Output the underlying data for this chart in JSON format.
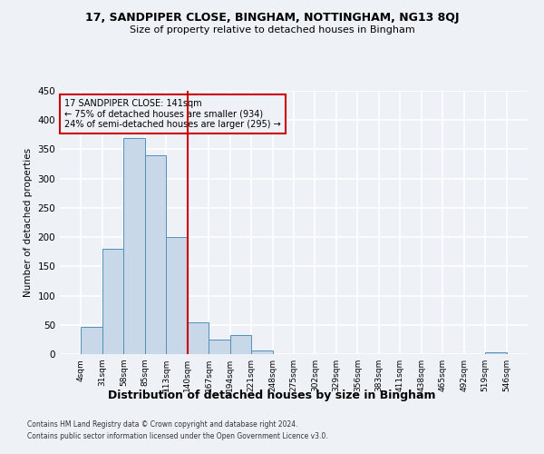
{
  "title": "17, SANDPIPER CLOSE, BINGHAM, NOTTINGHAM, NG13 8QJ",
  "subtitle": "Size of property relative to detached houses in Bingham",
  "xlabel": "Distribution of detached houses by size in Bingham",
  "ylabel": "Number of detached properties",
  "bin_labels": [
    "4sqm",
    "31sqm",
    "58sqm",
    "85sqm",
    "113sqm",
    "140sqm",
    "167sqm",
    "194sqm",
    "221sqm",
    "248sqm",
    "275sqm",
    "302sqm",
    "329sqm",
    "356sqm",
    "383sqm",
    "411sqm",
    "438sqm",
    "465sqm",
    "492sqm",
    "519sqm",
    "546sqm"
  ],
  "bar_heights": [
    47,
    180,
    370,
    340,
    200,
    54,
    25,
    33,
    6,
    0,
    0,
    0,
    0,
    0,
    0,
    0,
    0,
    0,
    0,
    3
  ],
  "bar_color": "#c8d8e8",
  "bar_edge_color": "#5090b8",
  "vline_x": 5,
  "vline_color": "#cc0000",
  "ylim": [
    0,
    450
  ],
  "yticks": [
    0,
    50,
    100,
    150,
    200,
    250,
    300,
    350,
    400,
    450
  ],
  "annotation_title": "17 SANDPIPER CLOSE: 141sqm",
  "annotation_line1": "← 75% of detached houses are smaller (934)",
  "annotation_line2": "24% of semi-detached houses are larger (295) →",
  "annotation_box_color": "#cc0000",
  "bg_color": "#eef2f7",
  "grid_color": "#ffffff",
  "footer1": "Contains HM Land Registry data © Crown copyright and database right 2024.",
  "footer2": "Contains public sector information licensed under the Open Government Licence v3.0."
}
